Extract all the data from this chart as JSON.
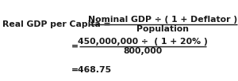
{
  "background_color": "#ffffff",
  "text_color": "#1a1a1a",
  "line1_label": "Real GDP per Capita = ",
  "line1_numerator": "Nominal GDP ÷ ( 1 + Deflator )",
  "line1_denominator": "Population",
  "line2_eq": "= ",
  "line2_numerator": "450,000,000 ÷  ( 1 + 20% )",
  "line2_denominator": "800,000",
  "line3": "=468.75",
  "fontsize": 7.8,
  "fig_width": 3.0,
  "fig_height": 1.03,
  "dpi": 100
}
